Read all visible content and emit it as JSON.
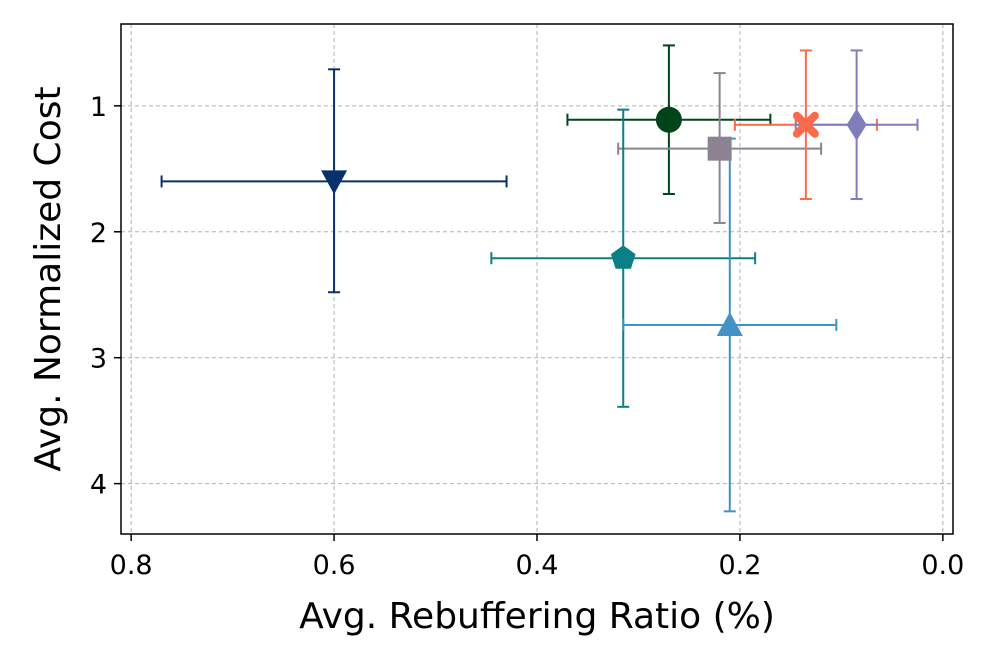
{
  "chart_data": {
    "type": "scatter",
    "title": "",
    "xlabel": "Avg. Rebuffering Ratio (%)",
    "ylabel": "Avg. Normalized Cost",
    "xlim": [
      0.81,
      -0.01
    ],
    "ylim": [
      4.4,
      0.35
    ],
    "x_inverted": true,
    "y_inverted": true,
    "grid": true,
    "legend": "none",
    "xticks": [
      0.8,
      0.6,
      0.4,
      0.2,
      0.0
    ],
    "xtick_labels": [
      "0.8",
      "0.6",
      "0.4",
      "0.2",
      "0.0"
    ],
    "yticks": [
      1,
      2,
      3,
      4
    ],
    "ytick_labels": [
      "1",
      "2",
      "3",
      "4"
    ],
    "series": [
      {
        "name": "navy-triangle-down",
        "marker": "triangle-down",
        "color": "#08306b",
        "x": 0.6,
        "y": 1.6,
        "xerr": [
          0.77,
          0.43
        ],
        "yerr": [
          0.71,
          2.48
        ]
      },
      {
        "name": "green-circle",
        "marker": "circle",
        "color": "#00441b",
        "x": 0.27,
        "y": 1.11,
        "xerr": [
          0.37,
          0.17
        ],
        "yerr": [
          0.52,
          1.7
        ]
      },
      {
        "name": "gray-square",
        "marker": "square",
        "color": "#8c8291",
        "x": 0.22,
        "y": 1.34,
        "xerr": [
          0.32,
          0.12
        ],
        "yerr": [
          0.74,
          1.93
        ]
      },
      {
        "name": "salmon-x",
        "marker": "x",
        "color": "#fb6a4a",
        "x": 0.135,
        "y": 1.15,
        "xerr": [
          0.205,
          0.065
        ],
        "yerr": [
          0.56,
          1.74
        ]
      },
      {
        "name": "purple-diamond",
        "marker": "diamond",
        "color": "#807dba",
        "x": 0.085,
        "y": 1.15,
        "xerr": [
          0.145,
          0.025
        ],
        "yerr": [
          0.56,
          1.74
        ]
      },
      {
        "name": "teal-pentagon",
        "marker": "pentagon",
        "color": "#0b7f86",
        "x": 0.315,
        "y": 2.21,
        "xerr": [
          0.445,
          0.185
        ],
        "yerr": [
          1.03,
          3.39
        ]
      },
      {
        "name": "blue-triangle-up",
        "marker": "triangle-up",
        "color": "#4292c6",
        "x": 0.21,
        "y": 2.74,
        "xerr": [
          0.315,
          0.105
        ],
        "yerr": [
          1.26,
          4.22
        ]
      }
    ]
  }
}
